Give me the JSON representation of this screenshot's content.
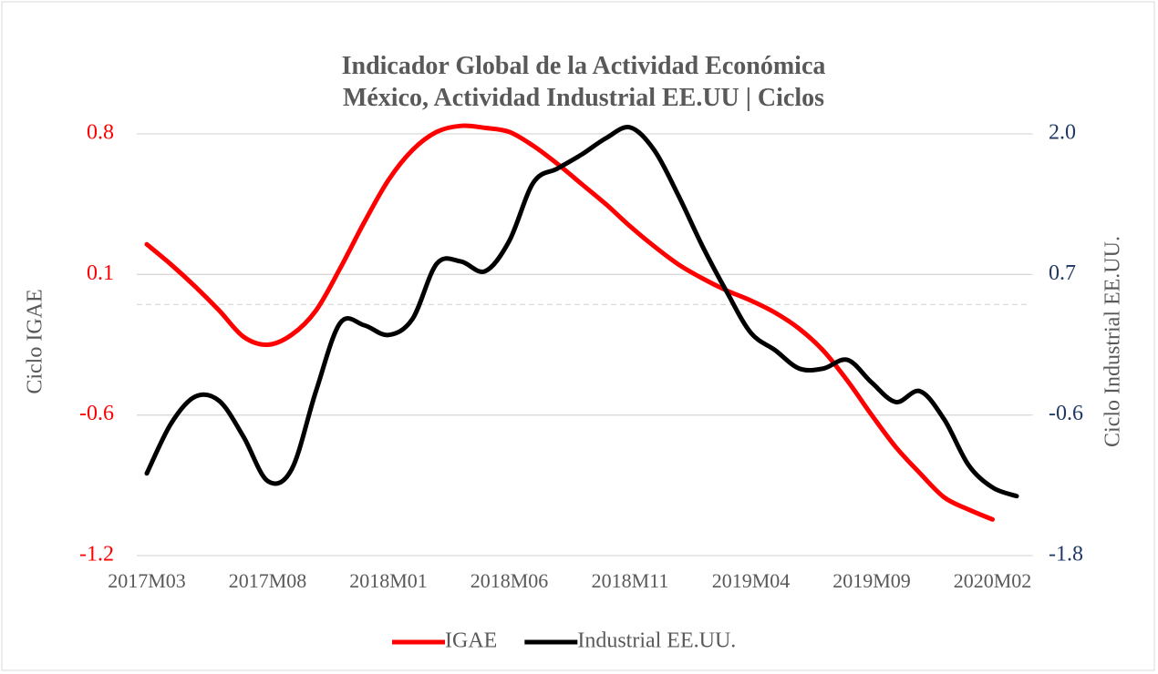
{
  "chart_data": {
    "type": "line",
    "title": "Indicador Global de la Actividad Económica México, Actividad Industrial EE.UU | Ciclos",
    "ylabel": "Ciclo IGAE",
    "y2label": "Ciclo Industrial EE.UU.",
    "categories": [
      "2017M03",
      null,
      null,
      null,
      null,
      "2017M08",
      null,
      null,
      null,
      null,
      "2018M01",
      null,
      null,
      null,
      null,
      "2018M06",
      null,
      null,
      null,
      null,
      "2018M11",
      null,
      null,
      null,
      null,
      "2019M04",
      null,
      null,
      null,
      null,
      "2019M09",
      null,
      null,
      null,
      null,
      "2020M02",
      null
    ],
    "series": [
      {
        "name": "IGAE",
        "color": "#ff0000",
        "values": [
          0.3,
          0.2,
          0.09,
          -0.03,
          -0.16,
          -0.2,
          -0.15,
          -0.03,
          0.18,
          0.41,
          0.62,
          0.77,
          0.86,
          0.89,
          0.88,
          0.86,
          0.79,
          0.7,
          0.6,
          0.5,
          0.39,
          0.29,
          0.2,
          0.13,
          0.07,
          0.02,
          -0.04,
          -0.12,
          -0.23,
          -0.38,
          -0.55,
          -0.71,
          -0.84,
          -0.96,
          -1.02,
          -1.07,
          null
        ]
      },
      {
        "name": "Industrial EE.UU.",
        "color": "#000000",
        "axis": "y2",
        "values": [
          -1.09,
          -0.63,
          -0.38,
          -0.42,
          -0.75,
          -1.16,
          -1.05,
          -0.33,
          0.3,
          0.28,
          0.19,
          0.34,
          0.85,
          0.87,
          0.78,
          1.06,
          1.6,
          1.73,
          1.86,
          2.01,
          2.11,
          1.9,
          1.48,
          1.01,
          0.59,
          0.21,
          0.05,
          -0.12,
          -0.12,
          -0.04,
          -0.25,
          -0.43,
          -0.33,
          -0.59,
          -1.01,
          -1.22,
          -1.3
        ]
      }
    ],
    "ylim": [
      -1.25,
      0.85
    ],
    "yticks": [
      {
        "value": -1.25,
        "label": "-1.2"
      },
      {
        "value": -0.55,
        "label": "-0.6"
      },
      {
        "value": 0.15,
        "label": "0.1"
      },
      {
        "value": 0.85,
        "label": "0.8"
      }
    ],
    "y2lim": [
      -1.85,
      2.05
    ],
    "y2ticks": [
      {
        "value": -1.85,
        "label": "-1.8"
      },
      {
        "value": -0.55,
        "label": "-0.6"
      },
      {
        "value": 0.75,
        "label": "0.7"
      },
      {
        "value": 2.05,
        "label": "2.0"
      }
    ],
    "ytick_color": "#ff0000",
    "y2tick_color": "#1f3864",
    "grid": true,
    "legend": "bottom"
  }
}
